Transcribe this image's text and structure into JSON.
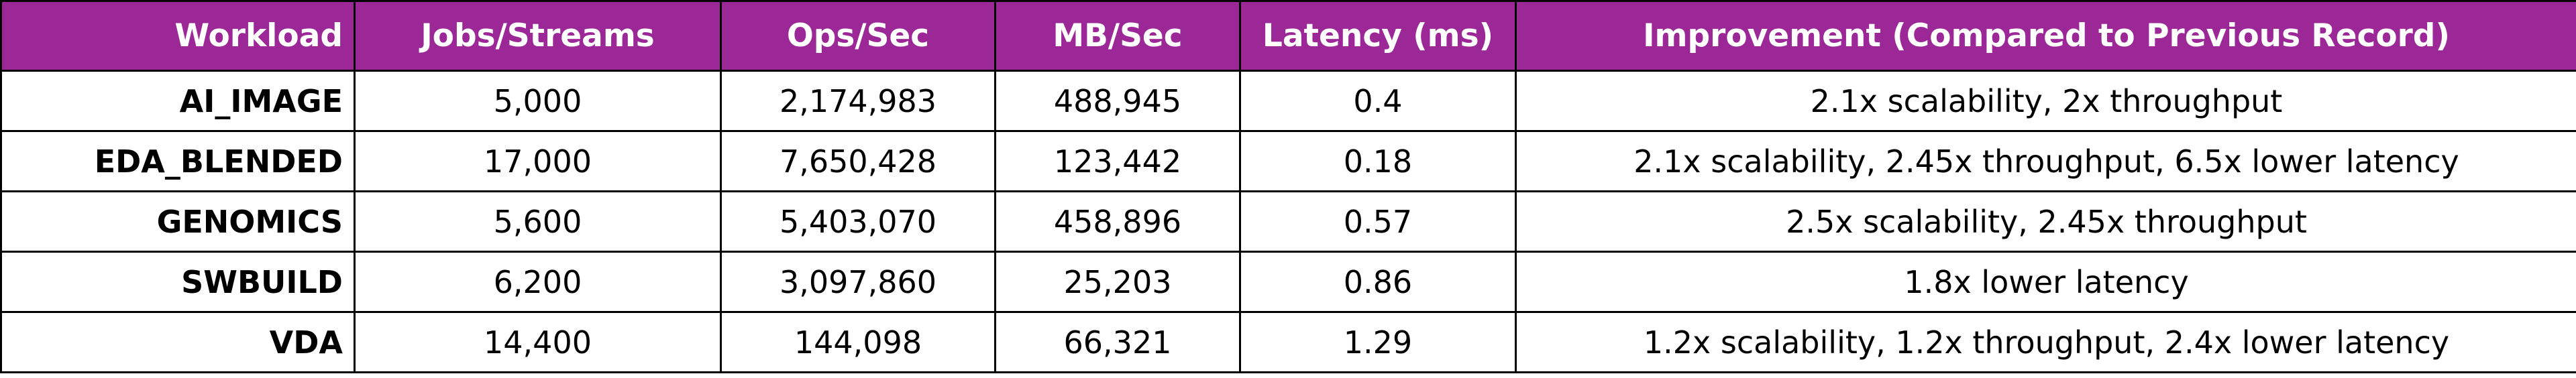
{
  "table": {
    "header": [
      "Workload",
      "Jobs/Streams",
      "Ops/Sec",
      "MB/Sec",
      "Latency (ms)",
      "Improvement (Compared to Previous Record)"
    ],
    "rows": [
      [
        "AI_IMAGE",
        "5,000",
        "2,174,983",
        "488,945",
        "0.4",
        "2.1x scalability, 2x throughput"
      ],
      [
        "EDA_BLENDED",
        "17,000",
        "7,650,428",
        "123,442",
        "0.18",
        "2.1x scalability, 2.45x throughput, 6.5x lower latency"
      ],
      [
        "GENOMICS",
        "5,600",
        "5,403,070",
        "458,896",
        "0.57",
        "2.5x scalability, 2.45x throughput"
      ],
      [
        "SWBUILD",
        "6,200",
        "3,097,860",
        "25,203",
        "0.86",
        "1.8x lower latency"
      ],
      [
        "VDA",
        "14,400",
        "144,098",
        "66,321",
        "1.29",
        "1.2x scalability, 1.2x throughput, 2.4x lower latency"
      ]
    ]
  }
}
